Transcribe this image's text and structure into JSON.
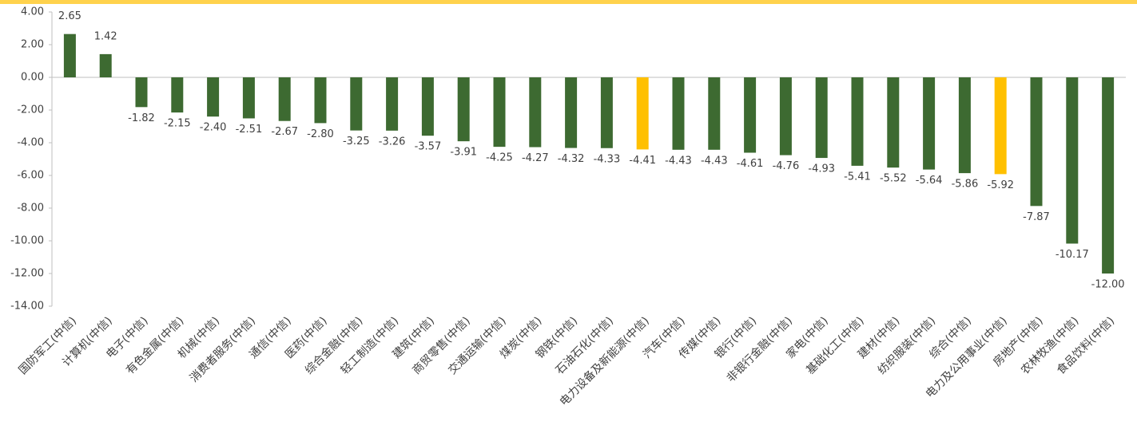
{
  "chart_data": {
    "type": "bar",
    "categories": [
      "国防军工(中信)",
      "计算机(中信)",
      "电子(中信)",
      "有色金属(中信)",
      "机械(中信)",
      "消费者服务(中信)",
      "通信(中信)",
      "医药(中信)",
      "综合金融(中信)",
      "轻工制造(中信)",
      "建筑(中信)",
      "商贸零售(中信)",
      "交通运输(中信)",
      "煤炭(中信)",
      "钢铁(中信)",
      "石油石化(中信)",
      "电力设备及新能源(中信)",
      "汽车(中信)",
      "传媒(中信)",
      "银行(中信)",
      "非银行金融(中信)",
      "家电(中信)",
      "基础化工(中信)",
      "建材(中信)",
      "纺织服装(中信)",
      "综合(中信)",
      "电力及公用事业(中信)",
      "房地产(中信)",
      "农林牧渔(中信)",
      "食品饮料(中信)"
    ],
    "values": [
      2.65,
      1.42,
      -1.82,
      -2.15,
      -2.4,
      -2.51,
      -2.67,
      -2.8,
      -3.25,
      -3.26,
      -3.57,
      -3.91,
      -4.25,
      -4.27,
      -4.32,
      -4.33,
      -4.41,
      -4.43,
      -4.43,
      -4.61,
      -4.76,
      -4.93,
      -5.41,
      -5.52,
      -5.64,
      -5.86,
      -5.92,
      -7.87,
      -10.17,
      -12
    ],
    "value_labels": [
      "2.65",
      "1.42",
      "-1.82",
      "-2.15",
      "-2.40",
      "-2.51",
      "-2.67",
      "-2.80",
      "-3.25",
      "-3.26",
      "-3.57",
      "-3.91",
      "-4.25",
      "-4.27",
      "-4.32",
      "-4.33",
      "-4.41",
      "-4.43",
      "-4.43",
      "-4.61",
      "-4.76",
      "-4.93",
      "-5.41",
      "-5.52",
      "-5.64",
      "-5.86",
      "-5.92",
      "-7.87",
      "-10.17",
      "-12.00"
    ],
    "colors": [
      "#3d6a31",
      "#3d6a31",
      "#3d6a31",
      "#3d6a31",
      "#3d6a31",
      "#3d6a31",
      "#3d6a31",
      "#3d6a31",
      "#3d6a31",
      "#3d6a31",
      "#3d6a31",
      "#3d6a31",
      "#3d6a31",
      "#3d6a31",
      "#3d6a31",
      "#3d6a31",
      "#ffc000",
      "#3d6a31",
      "#3d6a31",
      "#3d6a31",
      "#3d6a31",
      "#3d6a31",
      "#3d6a31",
      "#3d6a31",
      "#3d6a31",
      "#3d6a31",
      "#ffc000",
      "#3d6a31",
      "#3d6a31",
      "#3d6a31"
    ],
    "ylim": [
      -14,
      4
    ],
    "yticks": [
      {
        "value": -14,
        "label": "-14.00"
      },
      {
        "value": -12,
        "label": "-12.00"
      },
      {
        "value": -10,
        "label": "-10.00"
      },
      {
        "value": -8,
        "label": "-8.00"
      },
      {
        "value": -6,
        "label": "-6.00"
      },
      {
        "value": -4,
        "label": "-4.00"
      },
      {
        "value": -2,
        "label": "-2.00"
      },
      {
        "value": 0,
        "label": "0.00"
      },
      {
        "value": 2,
        "label": "2.00"
      },
      {
        "value": 4,
        "label": "4.00"
      }
    ],
    "grid": false
  }
}
